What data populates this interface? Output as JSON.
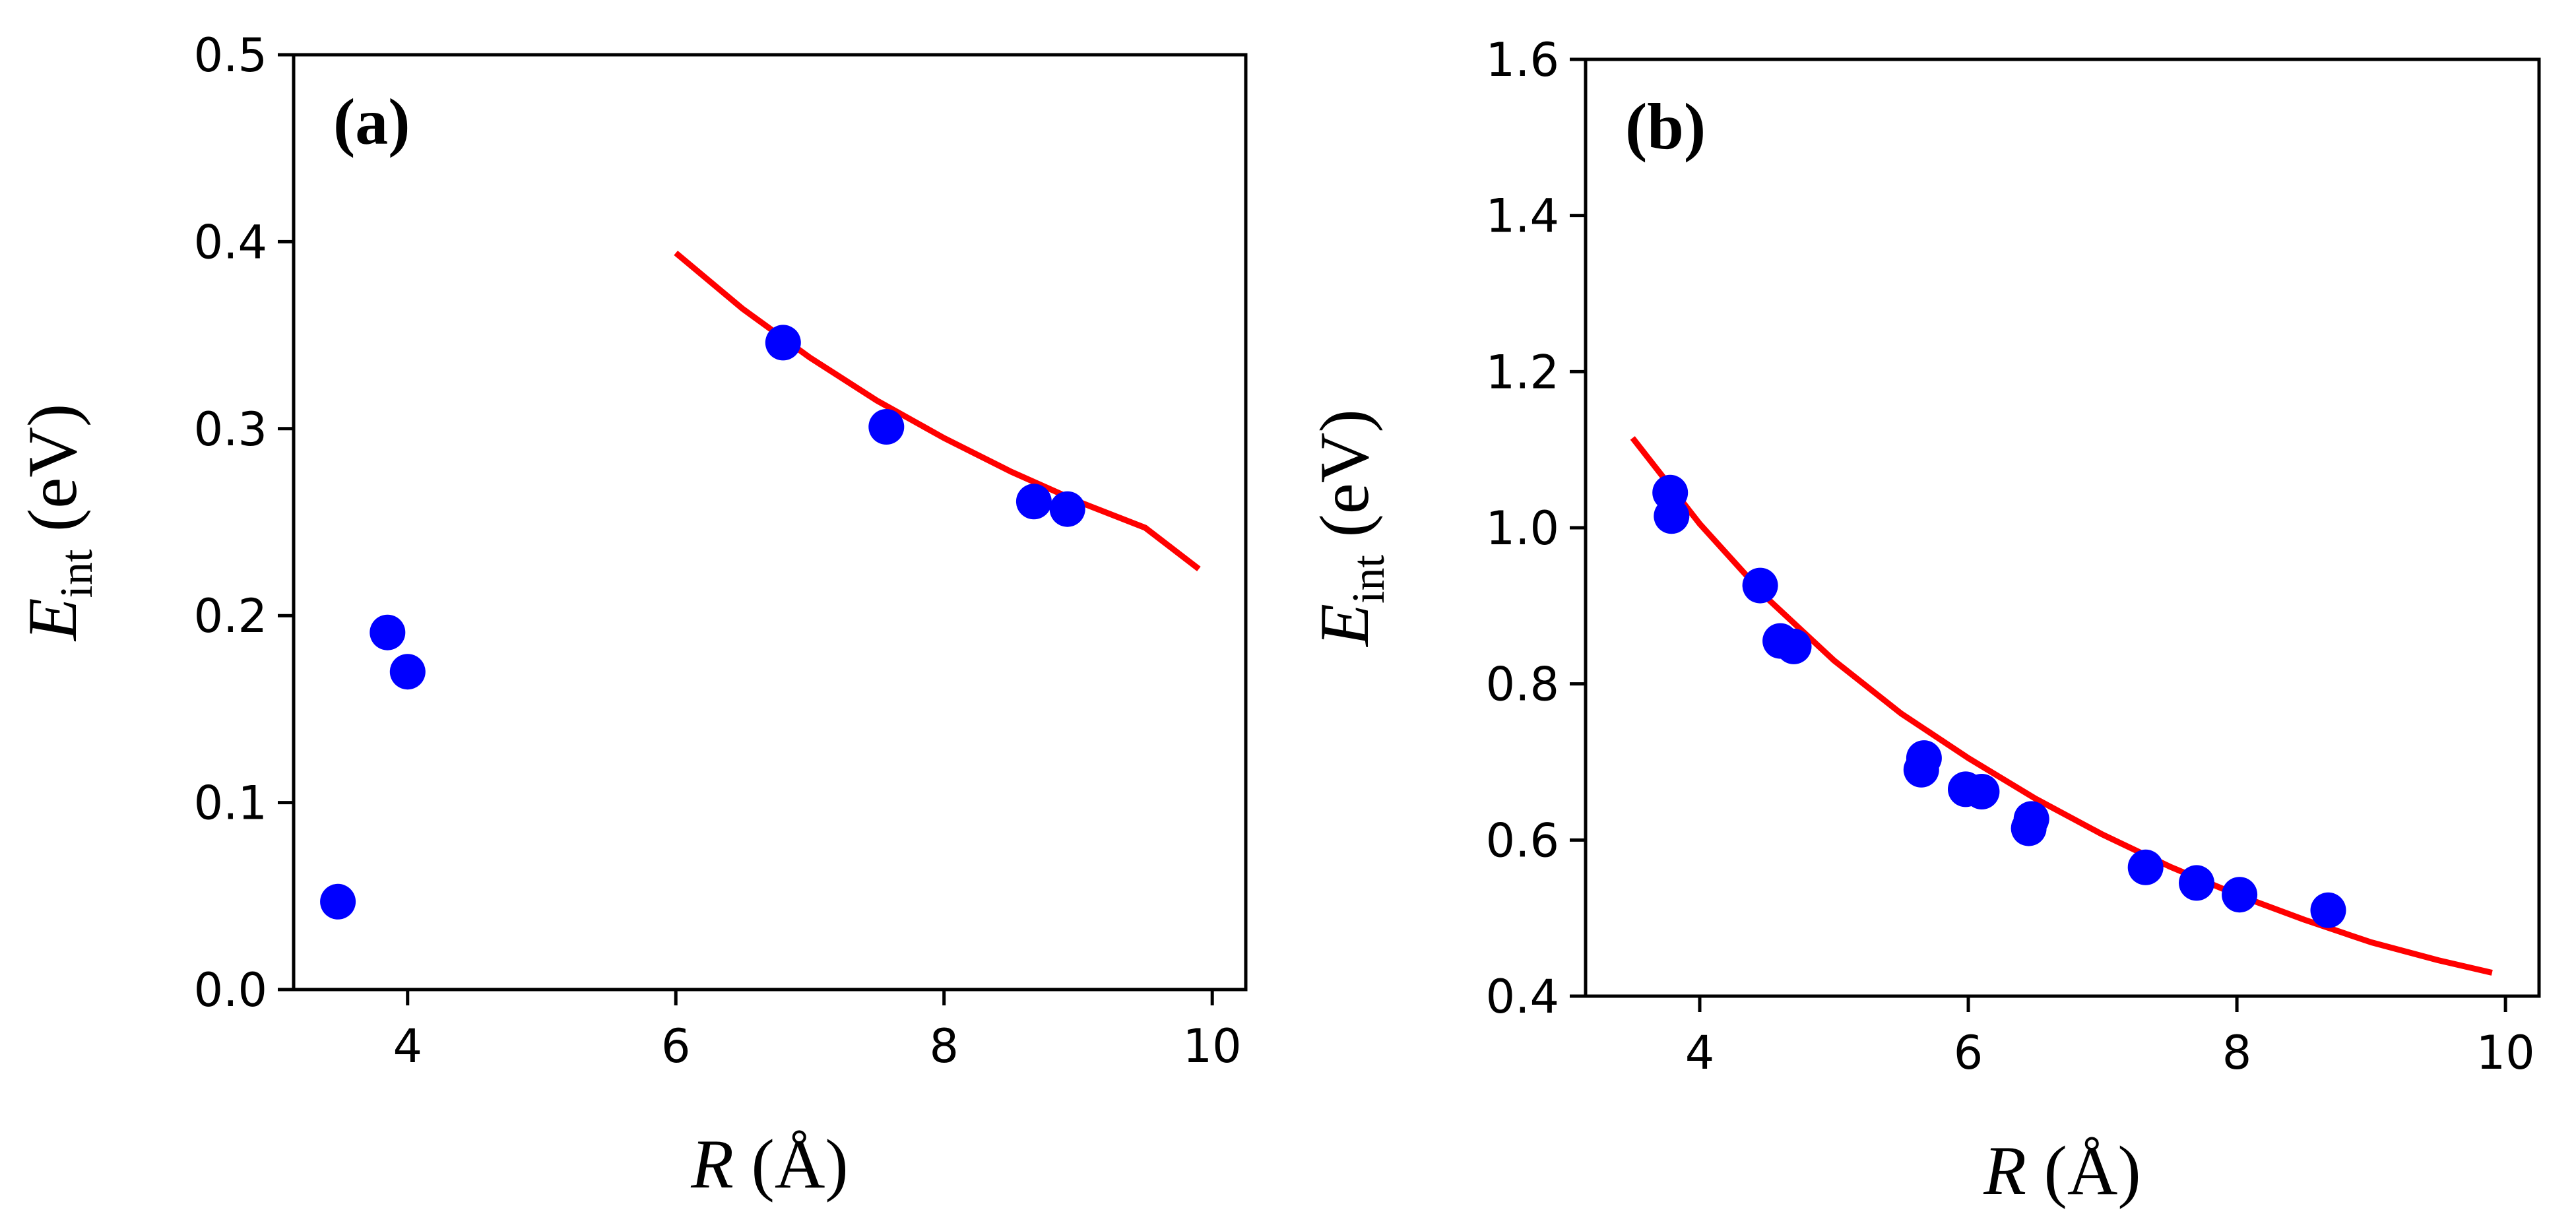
{
  "chart_data": [
    {
      "type": "scatter",
      "panel_label": "(a)",
      "xlabel_var": "R",
      "xlabel_unit": "(Å)",
      "ylabel_var": "E",
      "ylabel_sub": "int",
      "ylabel_unit": "(eV)",
      "xlim": [
        3.15,
        10.25
      ],
      "ylim": [
        0.0,
        0.5
      ],
      "xticks": [
        4,
        6,
        8,
        10
      ],
      "xtick_labels": [
        "4",
        "6",
        "8",
        "10"
      ],
      "yticks": [
        0.0,
        0.1,
        0.2,
        0.3,
        0.4,
        0.5
      ],
      "ytick_labels": [
        "0.0",
        "0.1",
        "0.2",
        "0.3",
        "0.4",
        "0.5"
      ],
      "grid": false,
      "colors": {
        "points": "#0000ff",
        "fit": "#ff0000"
      },
      "series": [
        {
          "name": "data",
          "kind": "points",
          "x": [
            3.48,
            3.85,
            4.0,
            6.8,
            7.57,
            8.67,
            8.92
          ],
          "y": [
            0.047,
            0.191,
            0.17,
            0.346,
            0.301,
            0.261,
            0.257
          ]
        },
        {
          "name": "fit",
          "kind": "line",
          "x": [
            6.0,
            6.5,
            7.0,
            7.5,
            8.0,
            8.5,
            9.0,
            9.5,
            9.9
          ],
          "y": [
            0.394,
            0.364,
            0.338,
            0.315,
            0.295,
            0.277,
            0.261,
            0.247,
            0.225
          ]
        }
      ]
    },
    {
      "type": "scatter",
      "panel_label": "(b)",
      "xlabel_var": "R",
      "xlabel_unit": "(Å)",
      "ylabel_var": "E",
      "ylabel_sub": "int",
      "ylabel_unit": "(eV)",
      "xlim": [
        3.15,
        10.25
      ],
      "ylim": [
        0.4,
        1.6
      ],
      "xticks": [
        4,
        6,
        8,
        10
      ],
      "xtick_labels": [
        "4",
        "6",
        "8",
        "10"
      ],
      "yticks": [
        0.4,
        0.6,
        0.8,
        1.0,
        1.2,
        1.4,
        1.6
      ],
      "ytick_labels": [
        "0.4",
        "0.6",
        "0.8",
        "1.0",
        "1.2",
        "1.4",
        "1.6"
      ],
      "grid": false,
      "colors": {
        "points": "#0000ff",
        "fit": "#ff0000"
      },
      "series": [
        {
          "name": "data",
          "kind": "points",
          "x": [
            3.78,
            3.79,
            4.45,
            4.6,
            4.7,
            5.65,
            5.67,
            5.98,
            6.1,
            6.45,
            6.47,
            7.32,
            7.7,
            8.02,
            8.68
          ],
          "y": [
            1.045,
            1.015,
            0.926,
            0.855,
            0.848,
            0.69,
            0.705,
            0.665,
            0.662,
            0.615,
            0.627,
            0.565,
            0.545,
            0.53,
            0.51
          ]
        },
        {
          "name": "fit",
          "kind": "line",
          "x": [
            3.5,
            4.0,
            4.5,
            5.0,
            5.5,
            6.0,
            6.5,
            7.0,
            7.5,
            8.0,
            8.5,
            9.0,
            9.5,
            9.9
          ],
          "y": [
            1.115,
            1.005,
            0.91,
            0.83,
            0.762,
            0.705,
            0.653,
            0.607,
            0.566,
            0.53,
            0.498,
            0.469,
            0.446,
            0.43
          ]
        }
      ]
    }
  ]
}
